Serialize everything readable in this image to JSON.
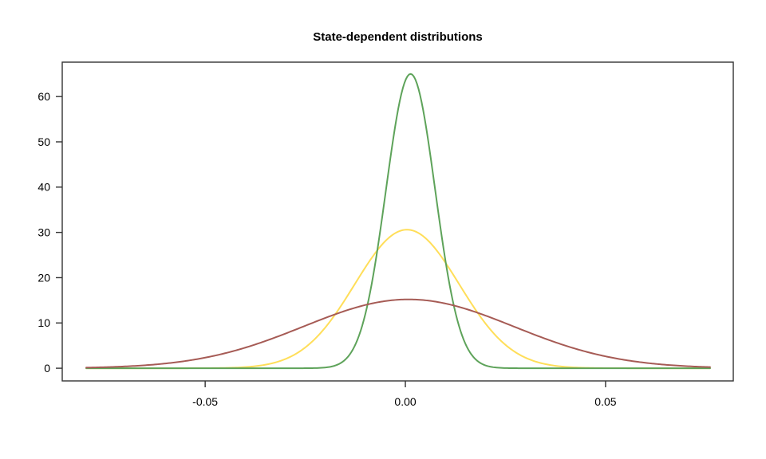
{
  "figure": {
    "background": "#ffffff",
    "axis_color": "#333333",
    "text_color": "#000000"
  },
  "chart_data": {
    "type": "line",
    "title": "State-dependent distributions",
    "xlabel": "",
    "ylabel": "",
    "grid": false,
    "legend_position": "none",
    "xlim": [
      -0.0857,
      0.0819
    ],
    "ylim": [
      -2.8,
      67.6
    ],
    "x_ticks": [
      {
        "value": -0.05,
        "label": "-0.05"
      },
      {
        "value": 0.0,
        "label": "0.00"
      },
      {
        "value": 0.05,
        "label": "0.05"
      }
    ],
    "y_ticks": [
      {
        "value": 0,
        "label": "0"
      },
      {
        "value": 10,
        "label": "10"
      },
      {
        "value": 20,
        "label": "20"
      },
      {
        "value": 30,
        "label": "30"
      },
      {
        "value": 40,
        "label": "40"
      },
      {
        "value": 50,
        "label": "50"
      },
      {
        "value": 60,
        "label": "60"
      }
    ],
    "curve_x_range": [
      -0.0797,
      0.0761
    ],
    "series": [
      {
        "name": "yellow-medium-width-curve",
        "color": "#FFDE59",
        "distribution": "normal",
        "mean": 0.0004,
        "sd": 0.01304,
        "peak_density": 30.6
      },
      {
        "name": "green-narrow-curve",
        "color": "#5EA35A",
        "distribution": "normal",
        "mean": 0.0013,
        "sd": 0.00614,
        "peak_density": 65.0
      },
      {
        "name": "red-wide-curve",
        "color": "#A65B55",
        "distribution": "normal",
        "mean": 0.0008,
        "sd": 0.02625,
        "peak_density": 15.2
      }
    ]
  }
}
